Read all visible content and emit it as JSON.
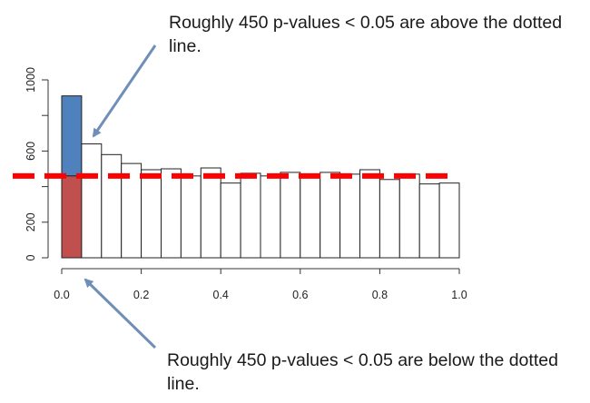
{
  "annotations": {
    "top": "Roughly 450 p-values < 0.05 are above the dotted line.",
    "bottom": "Roughly 450 p-values < 0.05 are below the dotted line."
  },
  "colors": {
    "above_fill": "#4f81bd",
    "below_fill": "#c0504d",
    "reference_line": "#ff0000",
    "arrow": "#6f8fb8",
    "bar_outline": "#222222"
  },
  "chart_data": {
    "type": "bar",
    "title": "",
    "xlabel": "",
    "ylabel": "",
    "bin_width": 0.05,
    "xlim": [
      0.0,
      1.0
    ],
    "ylim": [
      0,
      1000
    ],
    "x_ticks": [
      0.0,
      0.2,
      0.4,
      0.6,
      0.8,
      1.0
    ],
    "x_tick_labels": [
      "0.0",
      "0.2",
      "0.4",
      "0.6",
      "0.8",
      "1.0"
    ],
    "y_ticks": [
      0,
      200,
      600,
      1000
    ],
    "y_tick_labels": [
      "0",
      "200",
      "600",
      "1000"
    ],
    "bins": [
      {
        "start": 0.0,
        "end": 0.05,
        "count": 910
      },
      {
        "start": 0.05,
        "end": 0.1,
        "count": 640
      },
      {
        "start": 0.1,
        "end": 0.15,
        "count": 580
      },
      {
        "start": 0.15,
        "end": 0.2,
        "count": 530
      },
      {
        "start": 0.2,
        "end": 0.25,
        "count": 495
      },
      {
        "start": 0.25,
        "end": 0.3,
        "count": 500
      },
      {
        "start": 0.3,
        "end": 0.35,
        "count": 460
      },
      {
        "start": 0.35,
        "end": 0.4,
        "count": 505
      },
      {
        "start": 0.4,
        "end": 0.45,
        "count": 420
      },
      {
        "start": 0.45,
        "end": 0.5,
        "count": 475
      },
      {
        "start": 0.5,
        "end": 0.55,
        "count": 460
      },
      {
        "start": 0.55,
        "end": 0.6,
        "count": 480
      },
      {
        "start": 0.6,
        "end": 0.65,
        "count": 470
      },
      {
        "start": 0.65,
        "end": 0.7,
        "count": 480
      },
      {
        "start": 0.7,
        "end": 0.75,
        "count": 470
      },
      {
        "start": 0.75,
        "end": 0.8,
        "count": 495
      },
      {
        "start": 0.8,
        "end": 0.85,
        "count": 440
      },
      {
        "start": 0.85,
        "end": 0.9,
        "count": 470
      },
      {
        "start": 0.9,
        "end": 0.95,
        "count": 415
      },
      {
        "start": 0.95,
        "end": 1.0,
        "count": 420
      }
    ],
    "reference_line": {
      "y": 460,
      "style": "dashed"
    },
    "highlight_bin": {
      "index": 0,
      "split_at": 460,
      "above_label": "above",
      "below_label": "below"
    }
  }
}
